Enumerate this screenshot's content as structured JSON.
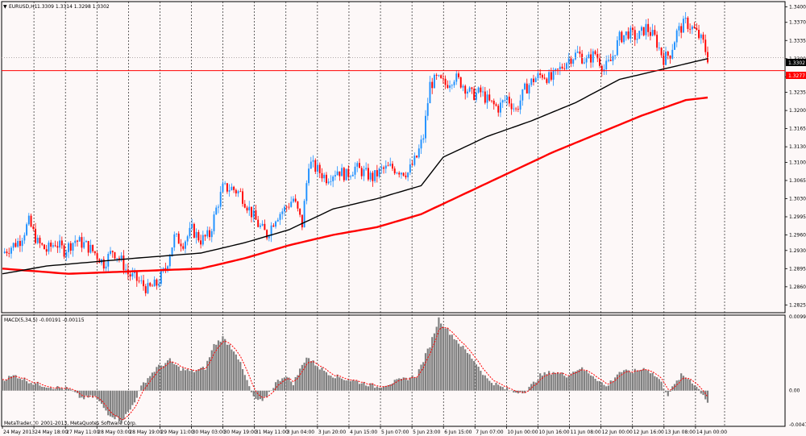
{
  "header": {
    "symbol": "EURUSD,H1",
    "ohlc": "1.3309 1.3314 1.3298 1.3302"
  },
  "price_tags": {
    "current": "1.3302",
    "line": "1.3277"
  },
  "footer": {
    "copyright": "MetaTrader, © 2001-2013, MetaQuotes Software Corp."
  },
  "macd_label": "MACD(5,34,5) -0.00191 -0.00115",
  "colors": {
    "bull": "#1e90ff",
    "bear": "#ff0000",
    "ma_fast": "#000000",
    "ma_slow": "#ff0000",
    "hline": "#ff0000",
    "hist": "#808080"
  },
  "chart_data": {
    "type": "candlestick",
    "symbol": "EURUSD",
    "timeframe": "H1",
    "price_axis": {
      "ylim": [
        1.281,
        1.341
      ],
      "ticks": [
        "1.3400",
        "1.3370",
        "1.3335",
        "1.3300",
        "1.3265",
        "1.3235",
        "1.3200",
        "1.3165",
        "1.3130",
        "1.3100",
        "1.3065",
        "1.3030",
        "1.2995",
        "1.2960",
        "1.2930",
        "1.2895",
        "1.2860",
        "1.2825"
      ]
    },
    "time_labels": [
      "24 May 2013",
      "24 May 18:00",
      "27 May 11:00",
      "28 May 03:00",
      "28 May 19:00",
      "29 May 11:00",
      "30 May 03:00",
      "30 May 19:00",
      "31 May 11:00",
      "3 Jun 04:00",
      "3 Jun 20:00",
      "4 Jun 15:00",
      "5 Jun 07:00",
      "5 Jun 23:00",
      "6 Jun 15:00",
      "7 Jun 07:00",
      "10 Jun 00:00",
      "10 Jun 16:00",
      "11 Jun 08:00",
      "12 Jun 00:00",
      "12 Jun 16:00",
      "13 Jun 08:00",
      "14 Jun 00:00"
    ],
    "horizontal_line": 1.3277,
    "last_price": 1.3302,
    "price_path": [
      [
        0,
        1.2925
      ],
      [
        8,
        1.295
      ],
      [
        12,
        1.2985
      ],
      [
        16,
        1.2945
      ],
      [
        20,
        1.293
      ],
      [
        24,
        1.2945
      ],
      [
        28,
        1.293
      ],
      [
        33,
        1.295
      ],
      [
        38,
        1.294
      ],
      [
        42,
        1.2925
      ],
      [
        46,
        1.2905
      ],
      [
        50,
        1.293
      ],
      [
        54,
        1.291
      ],
      [
        57,
        1.2885
      ],
      [
        62,
        1.287
      ],
      [
        66,
        1.2855
      ],
      [
        70,
        1.2865
      ],
      [
        74,
        1.2895
      ],
      [
        78,
        1.2955
      ],
      [
        82,
        1.2945
      ],
      [
        86,
        1.297
      ],
      [
        90,
        1.295
      ],
      [
        94,
        1.296
      ],
      [
        97,
        1.301
      ],
      [
        100,
        1.305
      ],
      [
        104,
        1.305
      ],
      [
        108,
        1.304
      ],
      [
        112,
        1.301
      ],
      [
        116,
        1.298
      ],
      [
        120,
        1.296
      ],
      [
        124,
        1.2995
      ],
      [
        128,
        1.301
      ],
      [
        132,
        1.303
      ],
      [
        136,
        1.298
      ],
      [
        139,
        1.31
      ],
      [
        143,
        1.3085
      ],
      [
        147,
        1.307
      ],
      [
        152,
        1.3085
      ],
      [
        156,
        1.3075
      ],
      [
        160,
        1.309
      ],
      [
        164,
        1.308
      ],
      [
        168,
        1.307
      ],
      [
        172,
        1.3085
      ],
      [
        176,
        1.309
      ],
      [
        180,
        1.3085
      ],
      [
        184,
        1.308
      ],
      [
        188,
        1.311
      ],
      [
        191,
        1.315
      ],
      [
        194,
        1.325
      ],
      [
        197,
        1.326
      ],
      [
        201,
        1.325
      ],
      [
        205,
        1.3265
      ],
      [
        209,
        1.325
      ],
      [
        213,
        1.323
      ],
      [
        217,
        1.3235
      ],
      [
        221,
        1.3215
      ],
      [
        225,
        1.3205
      ],
      [
        229,
        1.3225
      ],
      [
        233,
        1.32
      ],
      [
        237,
        1.324
      ],
      [
        241,
        1.326
      ],
      [
        245,
        1.327
      ],
      [
        249,
        1.326
      ],
      [
        253,
        1.328
      ],
      [
        257,
        1.33
      ],
      [
        261,
        1.331
      ],
      [
        265,
        1.3295
      ],
      [
        269,
        1.331
      ],
      [
        273,
        1.328
      ],
      [
        276,
        1.3295
      ],
      [
        280,
        1.334
      ],
      [
        284,
        1.335
      ],
      [
        288,
        1.334
      ],
      [
        292,
        1.336
      ],
      [
        296,
        1.334
      ],
      [
        300,
        1.33
      ],
      [
        303,
        1.331
      ],
      [
        306,
        1.335
      ],
      [
        310,
        1.337
      ],
      [
        314,
        1.3355
      ],
      [
        318,
        1.333
      ],
      [
        320,
        1.3302
      ]
    ],
    "ma_fast_path": [
      [
        0,
        1.2885
      ],
      [
        20,
        1.29
      ],
      [
        60,
        1.2915
      ],
      [
        90,
        1.2925
      ],
      [
        110,
        1.2945
      ],
      [
        130,
        1.297
      ],
      [
        150,
        1.301
      ],
      [
        170,
        1.303
      ],
      [
        190,
        1.3055
      ],
      [
        200,
        1.311
      ],
      [
        220,
        1.315
      ],
      [
        240,
        1.318
      ],
      [
        260,
        1.3215
      ],
      [
        280,
        1.326
      ],
      [
        300,
        1.328
      ],
      [
        320,
        1.33
      ]
    ],
    "ma_slow_path": [
      [
        0,
        1.2895
      ],
      [
        30,
        1.2885
      ],
      [
        60,
        1.289
      ],
      [
        90,
        1.2895
      ],
      [
        110,
        1.2915
      ],
      [
        130,
        1.294
      ],
      [
        150,
        1.296
      ],
      [
        170,
        1.2975
      ],
      [
        190,
        1.3
      ],
      [
        210,
        1.304
      ],
      [
        230,
        1.308
      ],
      [
        250,
        1.312
      ],
      [
        270,
        1.3155
      ],
      [
        290,
        1.319
      ],
      [
        310,
        1.322
      ],
      [
        320,
        1.3225
      ]
    ],
    "macd": {
      "fast": 5,
      "slow": 34,
      "signal": 5,
      "value": -0.00191,
      "signal_value": -0.00115,
      "ylim": [
        -0.00471,
        0.00997
      ],
      "ticks": [
        "0.00997",
        "0.00",
        "-0.00471"
      ],
      "hist_path": [
        [
          0,
          0.0015
        ],
        [
          6,
          0.002
        ],
        [
          14,
          0.001
        ],
        [
          22,
          0.0005
        ],
        [
          30,
          0.0002
        ],
        [
          36,
          -0.001
        ],
        [
          42,
          -0.0008
        ],
        [
          48,
          -0.003
        ],
        [
          54,
          -0.004
        ],
        [
          58,
          -0.0025
        ],
        [
          64,
          0.001
        ],
        [
          70,
          0.003
        ],
        [
          76,
          0.004
        ],
        [
          80,
          0.003
        ],
        [
          86,
          0.0025
        ],
        [
          92,
          0.003
        ],
        [
          96,
          0.006
        ],
        [
          100,
          0.007
        ],
        [
          106,
          0.005
        ],
        [
          110,
          0.002
        ],
        [
          114,
          -0.001
        ],
        [
          118,
          -0.0015
        ],
        [
          124,
          0.001
        ],
        [
          128,
          0.002
        ],
        [
          132,
          0.001
        ],
        [
          138,
          0.0045
        ],
        [
          144,
          0.003
        ],
        [
          150,
          0.002
        ],
        [
          156,
          0.0015
        ],
        [
          164,
          0.001
        ],
        [
          170,
          0.0005
        ],
        [
          176,
          0.001
        ],
        [
          182,
          0.0015
        ],
        [
          188,
          0.002
        ],
        [
          194,
          0.006
        ],
        [
          198,
          0.0095
        ],
        [
          202,
          0.008
        ],
        [
          208,
          0.006
        ],
        [
          214,
          0.004
        ],
        [
          220,
          0.0015
        ],
        [
          226,
          0.0005
        ],
        [
          232,
          -0.0002
        ],
        [
          238,
          0.0
        ],
        [
          244,
          0.002
        ],
        [
          250,
          0.0025
        ],
        [
          256,
          0.002
        ],
        [
          262,
          0.003
        ],
        [
          268,
          0.002
        ],
        [
          274,
          0.0005
        ],
        [
          280,
          0.0025
        ],
        [
          286,
          0.0025
        ],
        [
          292,
          0.003
        ],
        [
          298,
          0.0015
        ],
        [
          302,
          -0.0005
        ],
        [
          308,
          0.002
        ],
        [
          312,
          0.0015
        ],
        [
          318,
          -0.0005
        ],
        [
          320,
          -0.0015
        ]
      ]
    }
  }
}
